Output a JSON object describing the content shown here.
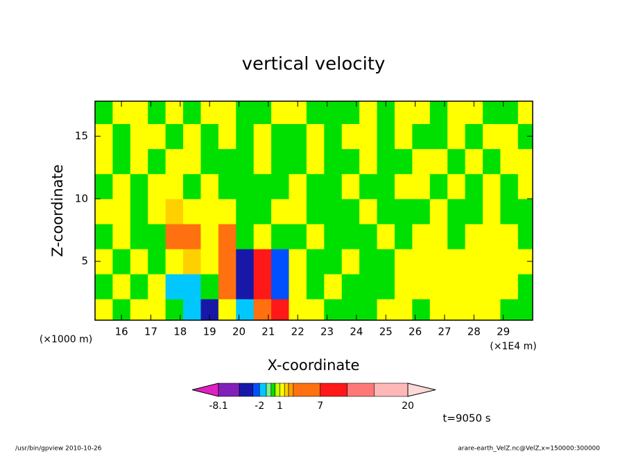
{
  "chart_data": {
    "type": "contour",
    "title": "vertical velocity",
    "xlabel": "X-coordinate",
    "ylabel": "Z-coordinate",
    "xunit": "(×1E4 m)",
    "yunit": "(×1000 m)",
    "time_label": "t=9050 s",
    "footer_left": "/usr/bin/gpview   2010-10-26",
    "footer_right": "arare-earth_VelZ.nc@VelZ,x=150000:300000",
    "xlim": [
      15.1,
      30
    ],
    "ylim": [
      0.3,
      17.8
    ],
    "xticks": [
      16,
      17,
      18,
      19,
      20,
      21,
      22,
      23,
      24,
      25,
      26,
      27,
      28,
      29
    ],
    "yticks": [
      5,
      10,
      15
    ],
    "x": [
      15.4,
      16,
      16.6,
      17.2,
      17.8,
      18.4,
      19,
      19.6,
      20.2,
      20.8,
      21.4,
      22,
      22.6,
      23.2,
      23.8,
      24.4,
      25,
      25.6,
      26.2,
      26.8,
      27.4,
      28,
      28.6,
      29.2,
      29.8
    ],
    "y": [
      1,
      3,
      5,
      7,
      9,
      11,
      13,
      15,
      17
    ],
    "z": [
      [
        1.2,
        -0.1,
        1.2,
        1.2,
        -0.1,
        -1.5,
        -4,
        1.2,
        -1.5,
        5,
        9,
        1.2,
        1.2,
        -0.1,
        -0.1,
        -0.1,
        1.2,
        1.2,
        -0.1,
        1.2,
        1.2,
        1.2,
        1.2,
        -0.1,
        -0.1
      ],
      [
        -0.1,
        1.2,
        -0.1,
        1.2,
        -1.5,
        -1.5,
        -0.1,
        3.5,
        -4,
        8,
        -2.5,
        1.2,
        -0.1,
        1.2,
        -0.1,
        -0.1,
        -0.1,
        1.2,
        1.2,
        1.2,
        1.2,
        1.2,
        1.2,
        1.2,
        -0.1
      ],
      [
        1.2,
        -0.1,
        1.2,
        -0.1,
        1.2,
        1.9,
        1.2,
        4,
        -3.5,
        7.5,
        -2.2,
        1.2,
        -0.1,
        -0.1,
        1.2,
        -0.1,
        -0.1,
        1.2,
        1.2,
        1.2,
        1.2,
        1.2,
        1.2,
        1.2,
        1.2
      ],
      [
        -0.1,
        1.2,
        -0.1,
        -0.1,
        3.5,
        4,
        1.2,
        5,
        -0.1,
        1.3,
        -0.1,
        -0.1,
        1.2,
        -0.1,
        -0.1,
        -0.1,
        1.2,
        -0.1,
        1.2,
        1.2,
        -0.1,
        1.2,
        1.2,
        1.2,
        -0.1
      ],
      [
        1.2,
        1.2,
        -0.1,
        1.2,
        2,
        1.2,
        1.2,
        1.2,
        -0.1,
        -0.1,
        1.2,
        1.2,
        -0.1,
        -0.1,
        -0.1,
        1.2,
        -0.1,
        -0.1,
        -0.1,
        1.2,
        -0.1,
        -0.1,
        1.2,
        -0.1,
        -0.1
      ],
      [
        -0.1,
        1.2,
        -0.1,
        1.2,
        1.2,
        -0.1,
        1.2,
        -0.1,
        -0.1,
        -0.1,
        -0.1,
        1.2,
        -0.1,
        -0.1,
        1.2,
        -0.1,
        -0.1,
        1.2,
        1.2,
        -0.1,
        1.2,
        -0.1,
        1.2,
        -0.1,
        1.2
      ],
      [
        1.2,
        -0.1,
        1.2,
        -0.1,
        1.2,
        1.2,
        -0.1,
        -0.1,
        -0.1,
        1.2,
        -0.1,
        -0.1,
        1.2,
        -0.1,
        -0.1,
        1.2,
        -0.1,
        -0.1,
        1.2,
        1.2,
        -0.1,
        1.2,
        -0.1,
        1.2,
        1.2
      ],
      [
        1.2,
        -0.1,
        1.2,
        1.2,
        -0.1,
        1.2,
        -0.1,
        1.2,
        -0.1,
        1.2,
        -0.1,
        -0.1,
        1.2,
        -0.1,
        1.2,
        1.2,
        -0.1,
        1.2,
        -0.1,
        -0.1,
        1.2,
        -0.1,
        1.2,
        1.2,
        -0.1
      ],
      [
        -0.1,
        1.2,
        1.2,
        -0.1,
        1.2,
        -0.1,
        1.2,
        1.2,
        -0.1,
        -0.1,
        1.2,
        1.2,
        -0.1,
        -0.1,
        -0.1,
        1.2,
        -0.1,
        1.2,
        1.2,
        -0.1,
        1.2,
        1.2,
        -0.1,
        -0.1,
        1.2
      ]
    ],
    "levels": [
      -8.1,
      -5,
      -3,
      -2,
      -1,
      -0.3,
      0.3,
      1,
      1.7,
      2.3,
      3,
      7,
      11,
      15,
      20
    ],
    "colors": [
      "#e020c0",
      "#8020b8",
      "#1818a8",
      "#0050ff",
      "#00c8ff",
      "#80f090",
      "#00e000",
      "#c0ff00",
      "#ffff00",
      "#ffd000",
      "#ffa000",
      "#ff7010",
      "#ff1818",
      "#ff7878",
      "#ffb8b8",
      "#ffd8d8"
    ],
    "colorbar_ticks": [
      -8.1,
      -2,
      1,
      7,
      20
    ]
  }
}
